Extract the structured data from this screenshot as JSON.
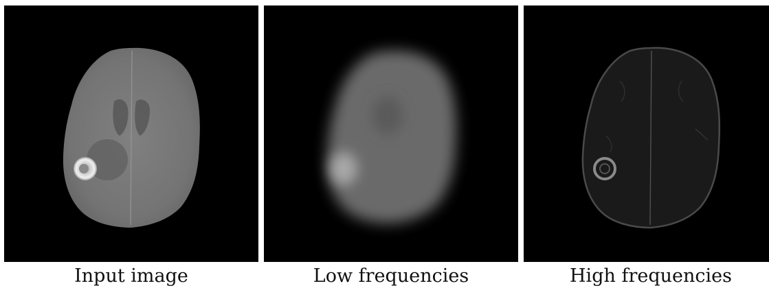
{
  "panels": [
    {
      "caption": "Input image"
    },
    {
      "caption": "Low frequencies"
    },
    {
      "caption": "High frequencies"
    }
  ],
  "colors": {
    "background": "#000000",
    "brain_tissue_input": "#7a7a7a",
    "brain_tissue_low": "#6a6a6a",
    "brain_edges_high": "#3a3a3a",
    "tumor_highlight": "#e0e0e0"
  }
}
